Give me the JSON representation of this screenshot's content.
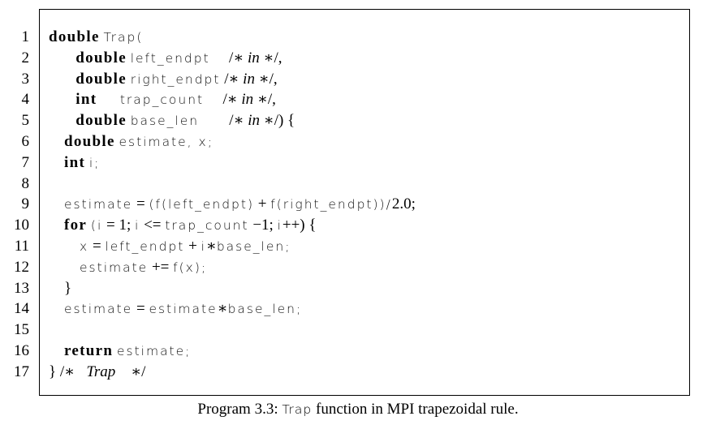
{
  "code": {
    "line_numbers": [
      "1",
      "2",
      "3",
      "4",
      "5",
      "6",
      "7",
      "8",
      "9",
      "10",
      "11",
      "12",
      "13",
      "14",
      "15",
      "16",
      "17"
    ],
    "lines": [
      [
        {
          "t": "kw",
          "v": "double"
        },
        {
          "t": "op",
          "v": " "
        },
        {
          "t": "id",
          "v": "Trap("
        }
      ],
      [
        {
          "t": "op",
          "v": "       "
        },
        {
          "t": "kw",
          "v": "double"
        },
        {
          "t": "op",
          "v": " "
        },
        {
          "t": "id",
          "v": "left_endpt  "
        },
        {
          "t": "op",
          "v": "  /∗ "
        },
        {
          "t": "cm",
          "v": "in"
        },
        {
          "t": "op",
          "v": " ∗/,"
        }
      ],
      [
        {
          "t": "op",
          "v": "       "
        },
        {
          "t": "kw",
          "v": "double"
        },
        {
          "t": "op",
          "v": " "
        },
        {
          "t": "id",
          "v": "right_endpt"
        },
        {
          "t": "op",
          "v": " /∗ "
        },
        {
          "t": "cm",
          "v": "in"
        },
        {
          "t": "op",
          "v": " ∗/,"
        }
      ],
      [
        {
          "t": "op",
          "v": "       "
        },
        {
          "t": "kw",
          "v": "int"
        },
        {
          "t": "op",
          "v": "      "
        },
        {
          "t": "id",
          "v": "trap_count  "
        },
        {
          "t": "op",
          "v": "  /∗ "
        },
        {
          "t": "cm",
          "v": "in"
        },
        {
          "t": "op",
          "v": " ∗/,"
        }
      ],
      [
        {
          "t": "op",
          "v": "       "
        },
        {
          "t": "kw",
          "v": "double"
        },
        {
          "t": "op",
          "v": " "
        },
        {
          "t": "id",
          "v": "base_len    "
        },
        {
          "t": "op",
          "v": "  /∗ "
        },
        {
          "t": "cm",
          "v": "in"
        },
        {
          "t": "op",
          "v": " ∗/) {"
        }
      ],
      [
        {
          "t": "op",
          "v": "    "
        },
        {
          "t": "kw",
          "v": "double"
        },
        {
          "t": "op",
          "v": " "
        },
        {
          "t": "id",
          "v": "estimate, x;"
        }
      ],
      [
        {
          "t": "op",
          "v": "    "
        },
        {
          "t": "kw",
          "v": "int"
        },
        {
          "t": "op",
          "v": " "
        },
        {
          "t": "id",
          "v": "i;"
        }
      ],
      [
        {
          "t": "op",
          "v": " "
        }
      ],
      [
        {
          "t": "op",
          "v": "    "
        },
        {
          "t": "id",
          "v": "estimate"
        },
        {
          "t": "op",
          "v": " = "
        },
        {
          "t": "id",
          "v": "(f(left_endpt)"
        },
        {
          "t": "op",
          "v": " + "
        },
        {
          "t": "id",
          "v": "f(right_endpt))/"
        },
        {
          "t": "op",
          "v": "2.0;"
        }
      ],
      [
        {
          "t": "op",
          "v": "    "
        },
        {
          "t": "kw",
          "v": "for"
        },
        {
          "t": "op",
          "v": " "
        },
        {
          "t": "id",
          "v": "(i"
        },
        {
          "t": "op",
          "v": " = 1; "
        },
        {
          "t": "id",
          "v": "i"
        },
        {
          "t": "op",
          "v": " <= "
        },
        {
          "t": "id",
          "v": "trap_count"
        },
        {
          "t": "op",
          "v": " −1; "
        },
        {
          "t": "id",
          "v": "i"
        },
        {
          "t": "op",
          "v": "++) {"
        }
      ],
      [
        {
          "t": "op",
          "v": "        "
        },
        {
          "t": "id",
          "v": "x"
        },
        {
          "t": "op",
          "v": " = "
        },
        {
          "t": "id",
          "v": "left_endpt"
        },
        {
          "t": "op",
          "v": " + "
        },
        {
          "t": "id",
          "v": "i"
        },
        {
          "t": "op",
          "v": "∗"
        },
        {
          "t": "id",
          "v": "base_len;"
        }
      ],
      [
        {
          "t": "op",
          "v": "        "
        },
        {
          "t": "id",
          "v": "estimate"
        },
        {
          "t": "op",
          "v": " += "
        },
        {
          "t": "id",
          "v": "f(x);"
        }
      ],
      [
        {
          "t": "op",
          "v": "    }"
        }
      ],
      [
        {
          "t": "op",
          "v": "    "
        },
        {
          "t": "id",
          "v": "estimate"
        },
        {
          "t": "op",
          "v": " = "
        },
        {
          "t": "id",
          "v": "estimate"
        },
        {
          "t": "op",
          "v": "∗"
        },
        {
          "t": "id",
          "v": "base_len;"
        }
      ],
      [
        {
          "t": "op",
          "v": " "
        }
      ],
      [
        {
          "t": "op",
          "v": "    "
        },
        {
          "t": "kw",
          "v": "return"
        },
        {
          "t": "op",
          "v": " "
        },
        {
          "t": "id",
          "v": "estimate;"
        }
      ],
      [
        {
          "t": "op",
          "v": "} /∗   "
        },
        {
          "t": "cm",
          "v": "Trap"
        },
        {
          "t": "op",
          "v": "    ∗/"
        }
      ]
    ]
  },
  "caption": {
    "prefix": "Program 3.3: ",
    "name": "Trap",
    "suffix": " function in MPI trapezoidal rule."
  }
}
